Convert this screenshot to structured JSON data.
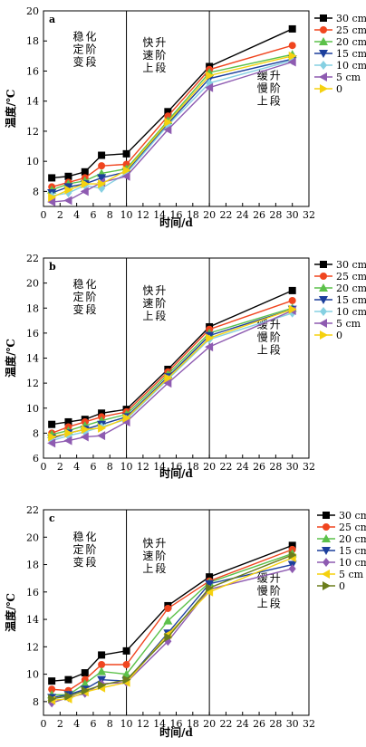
{
  "chart_data": [
    {
      "type": "line",
      "panel_label": "a",
      "xlabel": "时间/d",
      "ylabel": "温度/℃",
      "xlim": [
        0,
        32
      ],
      "ylim": [
        7,
        20
      ],
      "xticks": [
        0,
        2,
        4,
        6,
        8,
        10,
        12,
        14,
        16,
        18,
        20,
        22,
        24,
        26,
        28,
        30,
        32
      ],
      "yticks": [
        8,
        10,
        12,
        14,
        16,
        18,
        20
      ],
      "x": [
        1,
        3,
        5,
        7,
        10,
        15,
        20,
        30
      ],
      "series": [
        {
          "name": "30 cm",
          "values": [
            8.9,
            9.0,
            9.3,
            10.4,
            10.5,
            13.3,
            16.3,
            18.8
          ]
        },
        {
          "name": "25 cm",
          "values": [
            8.3,
            8.6,
            8.9,
            9.7,
            9.8,
            13.0,
            16.1,
            17.7
          ]
        },
        {
          "name": "20 cm",
          "values": [
            8.1,
            8.5,
            8.7,
            9.2,
            9.5,
            12.7,
            15.9,
            17.1
          ]
        },
        {
          "name": "15 cm",
          "values": [
            7.9,
            8.3,
            8.5,
            8.9,
            9.3,
            12.5,
            15.5,
            16.8
          ]
        },
        {
          "name": "10 cm",
          "values": [
            7.7,
            7.9,
            8.4,
            8.2,
            9.2,
            12.4,
            15.2,
            16.7
          ]
        },
        {
          "name": "5 cm",
          "values": [
            7.3,
            7.4,
            8.0,
            8.6,
            9.0,
            12.1,
            14.9,
            16.6
          ]
        },
        {
          "name": "0",
          "values": [
            7.6,
            8.1,
            8.5,
            8.5,
            9.4,
            12.6,
            15.7,
            17.0
          ]
        }
      ],
      "phase_dividers": [
        10,
        20
      ],
      "phases": [
        "稳定变化阶段",
        "快速上升阶段",
        "缓慢上升阶段"
      ],
      "legend_position": "right"
    },
    {
      "type": "line",
      "panel_label": "b",
      "xlabel": "时间/d",
      "ylabel": "温度/℃",
      "xlim": [
        0,
        32
      ],
      "ylim": [
        6,
        22
      ],
      "xticks": [
        0,
        2,
        4,
        6,
        8,
        10,
        12,
        14,
        16,
        18,
        20,
        22,
        24,
        26,
        28,
        30,
        32
      ],
      "yticks": [
        6,
        8,
        10,
        12,
        14,
        16,
        18,
        20,
        22
      ],
      "x": [
        1,
        3,
        5,
        7,
        10,
        15,
        20,
        30
      ],
      "series": [
        {
          "name": "30 cm",
          "values": [
            8.7,
            8.9,
            9.1,
            9.6,
            9.9,
            13.1,
            16.5,
            19.4
          ]
        },
        {
          "name": "25 cm",
          "values": [
            8.0,
            8.5,
            8.9,
            9.3,
            9.7,
            12.9,
            16.3,
            18.6
          ]
        },
        {
          "name": "20 cm",
          "values": [
            7.9,
            8.2,
            8.6,
            9.0,
            9.5,
            12.7,
            16.0,
            18.0
          ]
        },
        {
          "name": "15 cm",
          "values": [
            7.6,
            8.0,
            8.3,
            8.7,
            9.3,
            12.5,
            15.8,
            17.9
          ]
        },
        {
          "name": "10 cm",
          "values": [
            7.4,
            7.8,
            8.1,
            8.5,
            9.1,
            12.3,
            15.5,
            17.6
          ]
        },
        {
          "name": "5 cm",
          "values": [
            7.2,
            7.4,
            7.7,
            7.8,
            8.9,
            12.0,
            14.9,
            17.8
          ]
        },
        {
          "name": "0",
          "values": [
            7.7,
            8.0,
            8.3,
            8.4,
            9.2,
            12.4,
            15.6,
            17.9
          ]
        }
      ],
      "phase_dividers": [
        10,
        20
      ],
      "phases": [
        "稳定变化阶段",
        "快速上升阶段",
        "缓慢上升阶段"
      ],
      "legend_position": "right"
    },
    {
      "type": "line",
      "panel_label": "c",
      "xlabel": "时间/d",
      "ylabel": "温度/℃",
      "xlim": [
        0,
        32
      ],
      "ylim": [
        7,
        22
      ],
      "xticks": [
        0,
        2,
        4,
        6,
        8,
        10,
        12,
        14,
        16,
        18,
        20,
        22,
        24,
        26,
        28,
        30,
        32
      ],
      "yticks": [
        8,
        10,
        12,
        14,
        16,
        18,
        20,
        22
      ],
      "x": [
        1,
        3,
        5,
        7,
        10,
        15,
        20,
        30
      ],
      "series": [
        {
          "name": "30 cm",
          "values": [
            9.5,
            9.6,
            10.1,
            11.4,
            11.7,
            15.0,
            17.1,
            19.4
          ]
        },
        {
          "name": "25 cm",
          "values": [
            8.9,
            8.8,
            9.6,
            10.7,
            10.7,
            14.8,
            16.8,
            19.1
          ]
        },
        {
          "name": "20 cm",
          "values": [
            8.5,
            8.5,
            9.3,
            10.2,
            10.0,
            13.9,
            16.7,
            18.8
          ]
        },
        {
          "name": "15 cm",
          "values": [
            8.3,
            8.5,
            8.9,
            9.6,
            9.5,
            13.0,
            16.6,
            18.0
          ]
        },
        {
          "name": "10 cm",
          "values": [
            7.9,
            8.3,
            8.6,
            9.3,
            9.4,
            12.4,
            16.2,
            17.7
          ]
        },
        {
          "name": "5 cm",
          "values": [
            8.1,
            8.2,
            8.7,
            9.0,
            9.4,
            12.9,
            16.0,
            18.5
          ]
        },
        {
          "name": "0",
          "values": [
            8.2,
            8.4,
            8.8,
            9.2,
            9.6,
            12.7,
            16.3,
            18.7
          ]
        }
      ],
      "phase_dividers": [
        10,
        20
      ],
      "phases": [
        "稳定变化阶段",
        "快速上升阶段",
        "缓慢上升阶段"
      ],
      "legend_position": "right"
    }
  ],
  "style": {
    "series_colors": [
      "#000000",
      "#f0451f",
      "#5cc14a",
      "#1c3f9c",
      "#86d0e2",
      "#8e5bb1",
      "#f5d10f"
    ],
    "series_markers": [
      "square",
      "circle",
      "triangle-up",
      "triangle-down",
      "diamond",
      "triangle-left",
      "triangle-right"
    ],
    "panel_c_colors": [
      "#000000",
      "#f0451f",
      "#5cc14a",
      "#1c3f9c",
      "#8e5bb1",
      "#f5d10f",
      "#6b7d1c"
    ],
    "panel_c_markers": [
      "square",
      "circle",
      "triangle-up",
      "triangle-down",
      "diamond",
      "triangle-left",
      "triangle-right"
    ]
  }
}
